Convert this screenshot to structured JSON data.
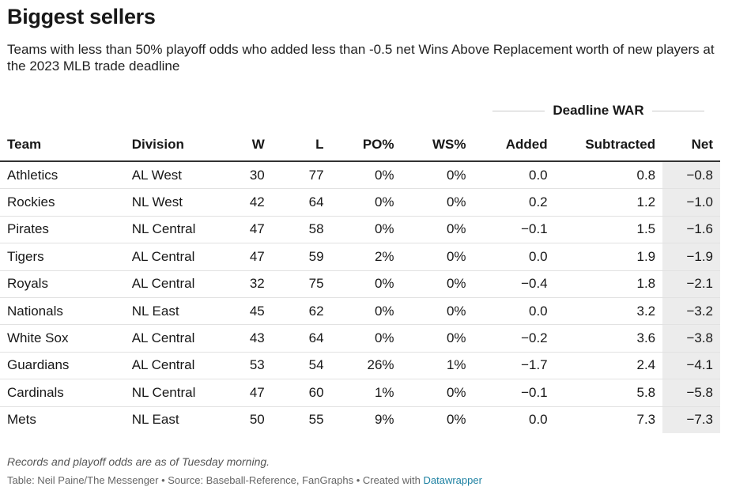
{
  "title": "Biggest sellers",
  "subtitle": "Teams with less than 50% playoff odds who added less than -0.5 net Wins Above Replacement worth of new players at the 2023 MLB trade deadline",
  "spanner_label": "Deadline WAR",
  "note": "Records and playoff odds are as of Tuesday morning.",
  "footer": {
    "text": "Table: Neil Paine/The Messenger • Source: Baseball-Reference, FanGraphs • Created with ",
    "link": "Datawrapper"
  },
  "colors": {
    "net_highlight": "#ececec",
    "link": "#1d81a2"
  },
  "chart_data": {
    "type": "table",
    "columns": [
      "Team",
      "Division",
      "W",
      "L",
      "PO%",
      "WS%",
      "Added",
      "Subtracted",
      "Net"
    ],
    "rows": [
      [
        "Athletics",
        "AL West",
        "30",
        "77",
        "0%",
        "0%",
        "0.0",
        "0.8",
        "−0.8"
      ],
      [
        "Rockies",
        "NL West",
        "42",
        "64",
        "0%",
        "0%",
        "0.2",
        "1.2",
        "−1.0"
      ],
      [
        "Pirates",
        "NL Central",
        "47",
        "58",
        "0%",
        "0%",
        "−0.1",
        "1.5",
        "−1.6"
      ],
      [
        "Tigers",
        "AL Central",
        "47",
        "59",
        "2%",
        "0%",
        "0.0",
        "1.9",
        "−1.9"
      ],
      [
        "Royals",
        "AL Central",
        "32",
        "75",
        "0%",
        "0%",
        "−0.4",
        "1.8",
        "−2.1"
      ],
      [
        "Nationals",
        "NL East",
        "45",
        "62",
        "0%",
        "0%",
        "0.0",
        "3.2",
        "−3.2"
      ],
      [
        "White Sox",
        "AL Central",
        "43",
        "64",
        "0%",
        "0%",
        "−0.2",
        "3.6",
        "−3.8"
      ],
      [
        "Guardians",
        "AL Central",
        "53",
        "54",
        "26%",
        "1%",
        "−1.7",
        "2.4",
        "−4.1"
      ],
      [
        "Cardinals",
        "NL Central",
        "47",
        "60",
        "1%",
        "0%",
        "−0.1",
        "5.8",
        "−5.8"
      ],
      [
        "Mets",
        "NL East",
        "50",
        "55",
        "9%",
        "0%",
        "0.0",
        "7.3",
        "−7.3"
      ]
    ]
  }
}
